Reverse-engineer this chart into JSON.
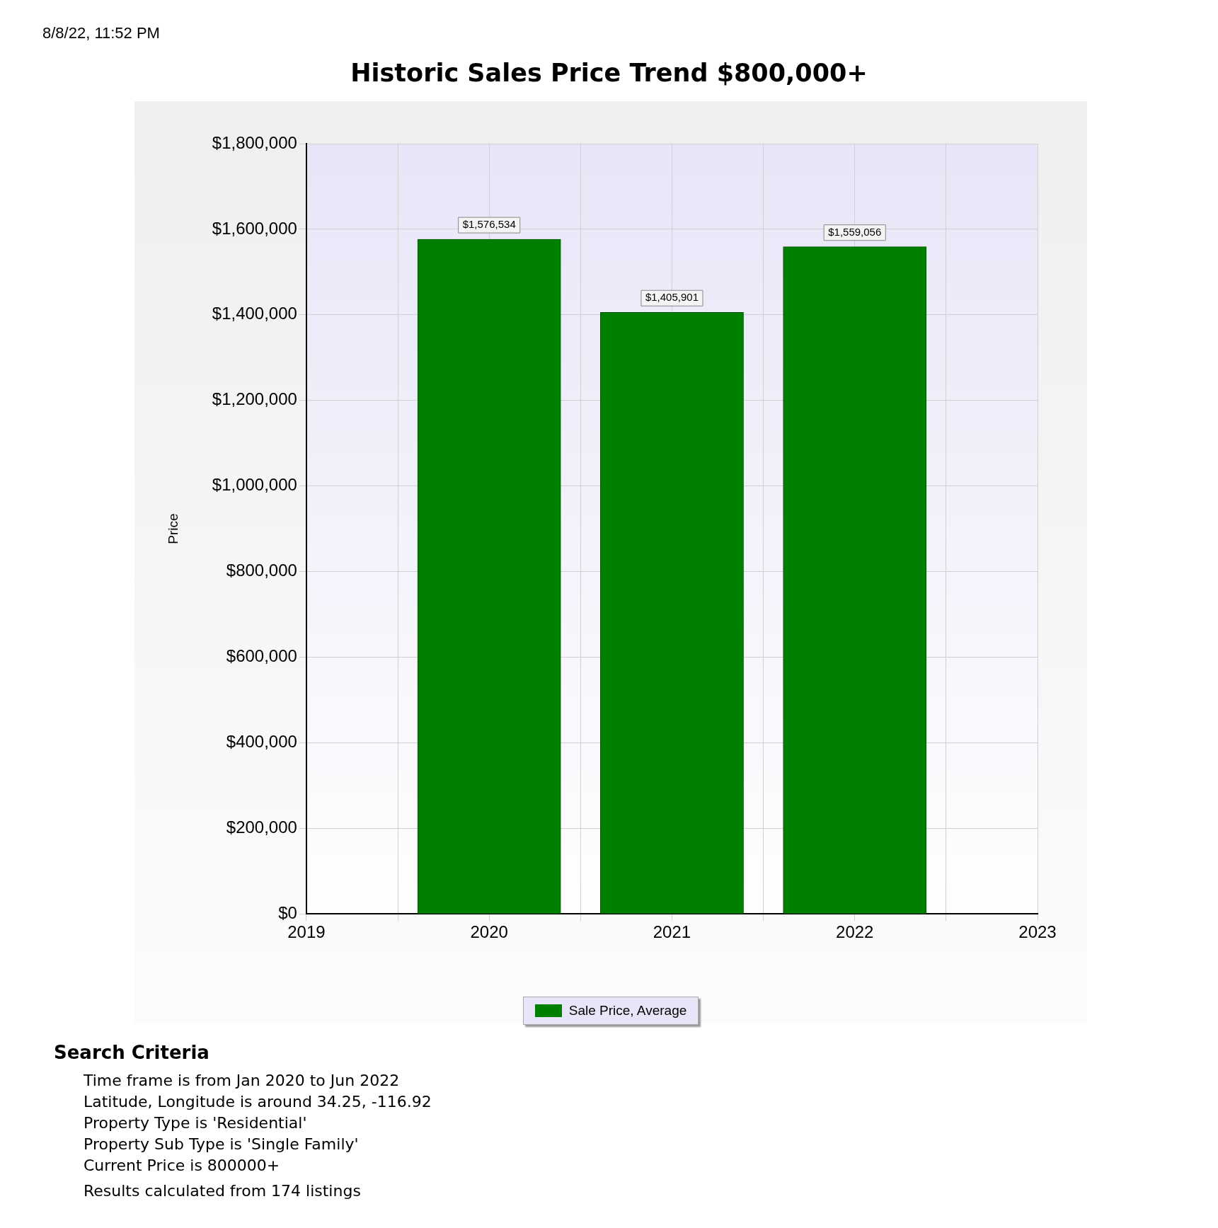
{
  "chart_data": {
    "type": "bar",
    "title": "Historic Sales Price Trend $800,000+",
    "ylabel": "Price",
    "x": [
      2020,
      2021,
      2022
    ],
    "series": [
      {
        "name": "Sale Price, Average",
        "color": "#008000",
        "values": [
          1576534,
          1405901,
          1559056
        ],
        "value_labels": [
          "$1,576,534",
          "$1,405,901",
          "$1,559,056"
        ]
      }
    ],
    "xlim": [
      2019,
      2023
    ],
    "xticks": [
      2019,
      {
        "value": 2019.5,
        "label": null
      },
      2020,
      {
        "value": 2020.5,
        "label": null
      },
      2021,
      {
        "value": 2021.5,
        "label": null
      },
      2022,
      {
        "value": 2022.5,
        "label": null
      },
      2023
    ],
    "ylim": [
      0,
      1800000
    ],
    "yticks": [
      {
        "value": 0,
        "label": "$0"
      },
      {
        "value": 200000,
        "label": "$200,000"
      },
      {
        "value": 400000,
        "label": "$400,000"
      },
      {
        "value": 600000,
        "label": "$600,000"
      },
      {
        "value": 800000,
        "label": "$800,000"
      },
      {
        "value": 1000000,
        "label": "$1,000,000"
      },
      {
        "value": 1200000,
        "label": "$1,200,000"
      },
      {
        "value": 1400000,
        "label": "$1,400,000"
      },
      {
        "value": 1600000,
        "label": "$1,600,000"
      },
      {
        "value": 1800000,
        "label": "$1,800,000"
      }
    ],
    "grid": true,
    "legend": "bottom",
    "annotations": [
      "8/8/22, 11:52 PM",
      "Search Criteria",
      "Time frame is from Jan 2020 to Jun 2022",
      "Latitude, Longitude is around 34.25, -116.92",
      "Property Type is 'Residential'",
      "Property Sub Type is 'Single Family'",
      "Current Price is 800000+",
      "Results calculated from 174 listings"
    ]
  }
}
